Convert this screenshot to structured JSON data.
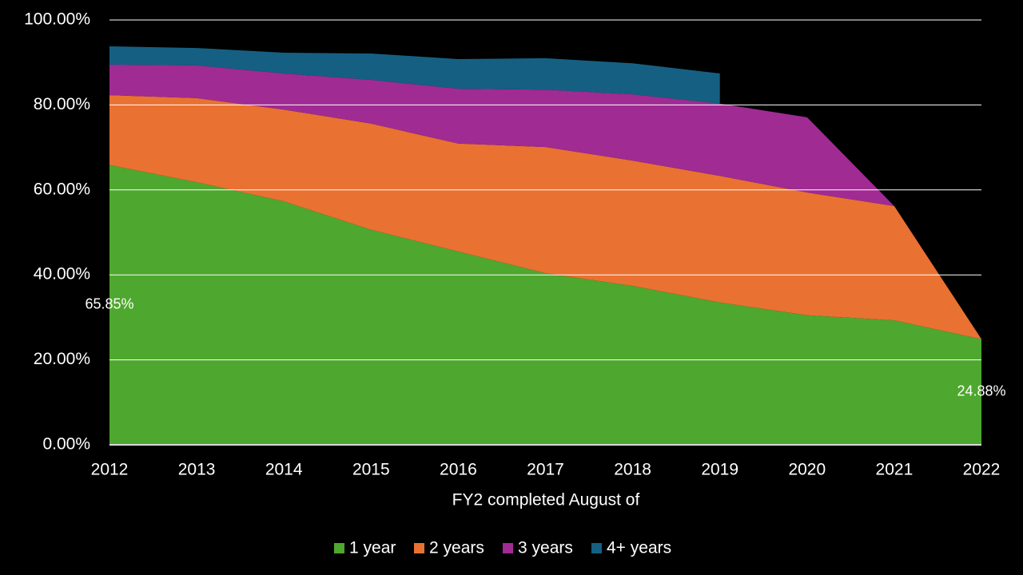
{
  "chart_data": {
    "type": "stacked_area",
    "x_label": "FY2 completed August of",
    "categories": [
      "2012",
      "2013",
      "2014",
      "2015",
      "2016",
      "2017",
      "2018",
      "2019",
      "2020",
      "2021",
      "2022"
    ],
    "series": [
      {
        "name": "1 year",
        "color": "#4ea72e",
        "values": [
          65.85,
          61.8,
          57.3,
          50.6,
          45.5,
          40.4,
          37.4,
          33.5,
          30.5,
          29.3,
          24.88
        ],
        "value_labels": [
          "65.85%",
          null,
          null,
          null,
          null,
          null,
          null,
          null,
          null,
          null,
          "24.88%"
        ]
      },
      {
        "name": "2 years",
        "color": "#e97132",
        "values": [
          16.45,
          19.8,
          21.6,
          25.0,
          25.4,
          29.7,
          29.5,
          29.8,
          28.9,
          26.9,
          0
        ]
      },
      {
        "name": "3 years",
        "color": "#a02b93",
        "values": [
          7.2,
          7.7,
          8.5,
          10.3,
          12.9,
          13.5,
          15.6,
          17.0,
          17.7,
          0,
          0
        ]
      },
      {
        "name": "4+ years",
        "color": "#156082",
        "values": [
          4.3,
          4.1,
          4.9,
          6.2,
          7.0,
          7.4,
          7.3,
          7.1,
          null,
          null,
          null
        ]
      }
    ],
    "ylim": [
      0,
      100
    ],
    "yticks": [
      {
        "value": 0,
        "label": "0.00%"
      },
      {
        "value": 20,
        "label": "20.00%"
      },
      {
        "value": 40,
        "label": "40.00%"
      },
      {
        "value": 60,
        "label": "60.00%"
      },
      {
        "value": 80,
        "label": "80.00%"
      },
      {
        "value": 100,
        "label": "100.00%"
      }
    ],
    "grid": true,
    "legend": "bottom"
  }
}
